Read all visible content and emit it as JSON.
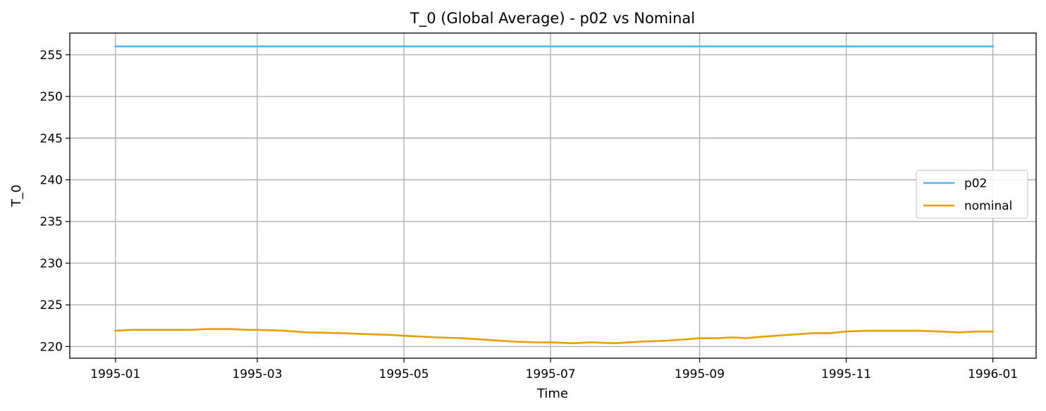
{
  "chart_data": {
    "type": "line",
    "title": "T_0 (Global Average) - p02 vs Nominal",
    "xlabel": "Time",
    "ylabel": "T_0",
    "xlim": [
      "1994-12-13",
      "1996-01-19"
    ],
    "ylim": [
      218.6,
      257.6
    ],
    "grid": true,
    "legend_position": "center-right",
    "x_ticks": [
      "1995-01",
      "1995-03",
      "1995-05",
      "1995-07",
      "1995-09",
      "1995-11",
      "1996-01"
    ],
    "y_ticks": [
      220,
      225,
      230,
      235,
      240,
      245,
      250,
      255
    ],
    "series": [
      {
        "name": "p02",
        "color": "#56b4e9",
        "x": [
          "1995-01-01",
          "1996-01-01"
        ],
        "values": [
          256.0,
          256.0
        ]
      },
      {
        "name": "nominal",
        "color": "#e69f00",
        "x": [
          "1995-01-01",
          "1995-01-08",
          "1995-01-15",
          "1995-01-22",
          "1995-02-01",
          "1995-02-08",
          "1995-02-18",
          "1995-02-25",
          "1995-03-01",
          "1995-03-12",
          "1995-03-22",
          "1995-04-05",
          "1995-04-15",
          "1995-04-25",
          "1995-05-01",
          "1995-05-15",
          "1995-05-25",
          "1995-06-05",
          "1995-06-15",
          "1995-06-25",
          "1995-07-01",
          "1995-07-10",
          "1995-07-18",
          "1995-07-28",
          "1995-08-08",
          "1995-08-18",
          "1995-08-28",
          "1995-09-01",
          "1995-09-08",
          "1995-09-15",
          "1995-09-20",
          "1995-09-28",
          "1995-10-08",
          "1995-10-18",
          "1995-10-25",
          "1995-11-01",
          "1995-11-10",
          "1995-11-20",
          "1995-12-01",
          "1995-12-10",
          "1995-12-18",
          "1995-12-25",
          "1996-01-01"
        ],
        "values": [
          221.9,
          222.0,
          222.0,
          222.0,
          222.0,
          222.1,
          222.1,
          222.0,
          222.0,
          221.9,
          221.7,
          221.6,
          221.5,
          221.4,
          221.3,
          221.1,
          221.0,
          220.8,
          220.6,
          220.5,
          220.5,
          220.4,
          220.5,
          220.4,
          220.6,
          220.7,
          220.9,
          221.0,
          221.0,
          221.1,
          221.0,
          221.2,
          221.4,
          221.6,
          221.6,
          221.8,
          221.9,
          221.9,
          221.9,
          221.8,
          221.7,
          221.8,
          221.8
        ]
      }
    ]
  }
}
